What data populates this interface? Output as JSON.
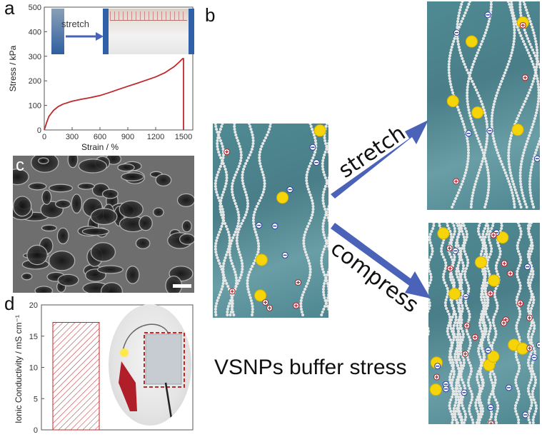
{
  "panels": {
    "a": {
      "letter": "a"
    },
    "b": {
      "letter": "b"
    },
    "c": {
      "letter": "c"
    },
    "d": {
      "letter": "d"
    }
  },
  "inset_a": {
    "label": "stretch"
  },
  "scheme": {
    "arrow_up_label": "stretch",
    "arrow_down_label": "compress",
    "caption": "VSNPs buffer stress"
  },
  "chart_data": [
    {
      "type": "line",
      "panel": "a",
      "xlabel": "Strain / %",
      "ylabel": "Stress / kPa",
      "xlim": [
        0,
        1600
      ],
      "ylim": [
        0,
        500
      ],
      "xticks": [
        0,
        300,
        600,
        900,
        1200,
        1500
      ],
      "yticks": [
        0,
        100,
        200,
        300,
        400,
        500
      ],
      "series": [
        {
          "color": "#c0282c",
          "x": [
            0,
            25,
            50,
            100,
            150,
            200,
            300,
            400,
            500,
            600,
            700,
            800,
            900,
            1000,
            1100,
            1200,
            1300,
            1400,
            1450,
            1490,
            1500,
            1500
          ],
          "y": [
            0,
            30,
            55,
            80,
            95,
            105,
            117,
            125,
            132,
            140,
            152,
            165,
            178,
            190,
            203,
            216,
            233,
            258,
            275,
            290,
            290,
            0
          ]
        }
      ]
    },
    {
      "type": "bar",
      "panel": "d",
      "ylabel": "Ionic Conductivity / mS cm⁻¹",
      "ylim": [
        0,
        20
      ],
      "yticks": [
        0,
        5,
        10,
        15,
        20
      ],
      "categories": [
        ""
      ],
      "values": [
        17.2
      ],
      "color": "#c0282c"
    }
  ]
}
